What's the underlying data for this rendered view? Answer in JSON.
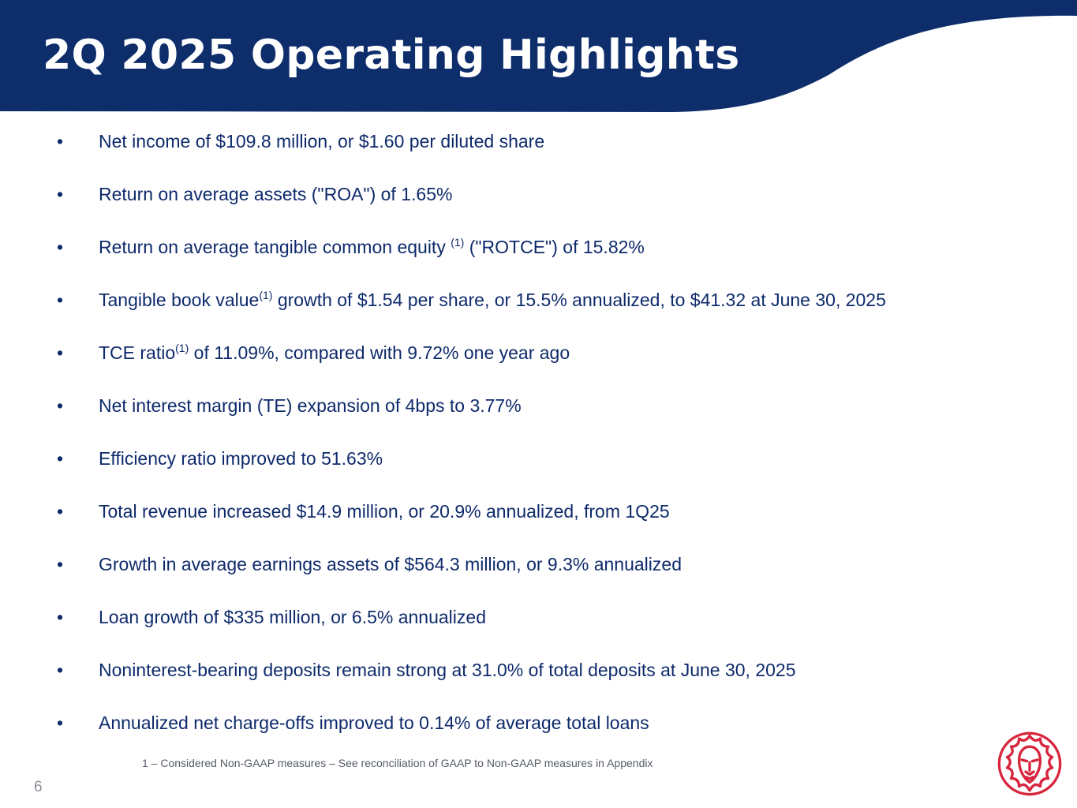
{
  "slide": {
    "title": "2Q 2025 Operating Highlights",
    "page_number": "6",
    "footnote": "1 – Considered Non-GAAP measures – See reconciliation of GAAP to Non-GAAP measures in Appendix"
  },
  "bullets": [
    {
      "marker": "•",
      "text": "Net income of $109.8 million, or $1.60 per diluted share"
    },
    {
      "marker": "•",
      "text": "Return on average assets (\"ROA\") of 1.65%"
    },
    {
      "marker": "•",
      "pre": "Return on average tangible common equity ",
      "sup": "(1)",
      "post": " (\"ROTCE\") of 15.82%"
    },
    {
      "marker": "•",
      "pre": "Tangible book value",
      "sup": "(1)",
      "post": " growth of $1.54 per share, or 15.5% annualized, to $41.32 at June 30, 2025"
    },
    {
      "marker": "•",
      "pre": "TCE ratio",
      "sup": "(1)",
      "post": " of 11.09%, compared with 9.72% one year ago"
    },
    {
      "marker": "•",
      "text": "Net interest margin (TE) expansion of 4bps to 3.77%"
    },
    {
      "marker": "•",
      "text": "Efficiency ratio improved to 51.63%"
    },
    {
      "marker": "•",
      "text": "Total revenue increased $14.9 million, or 20.9% annualized, from 1Q25"
    },
    {
      "marker": "•",
      "text": "Growth in average earnings assets of $564.3 million, or 9.3% annualized"
    },
    {
      "marker": "•",
      "text": "Loan growth of $335 million, or 6.5% annualized"
    },
    {
      "marker": "•",
      "text": "Noninterest-bearing deposits remain strong at 31.0% of total deposits at June 30, 2025"
    },
    {
      "marker": "•",
      "text": "Annualized net charge-offs improved to 0.14% of average total loans"
    }
  ],
  "colors": {
    "header_navy": "#0d2d6b",
    "text_navy": "#0e2a6b",
    "logo_red": "#d7263d"
  },
  "logo": {
    "icon": "lion-head-icon"
  }
}
